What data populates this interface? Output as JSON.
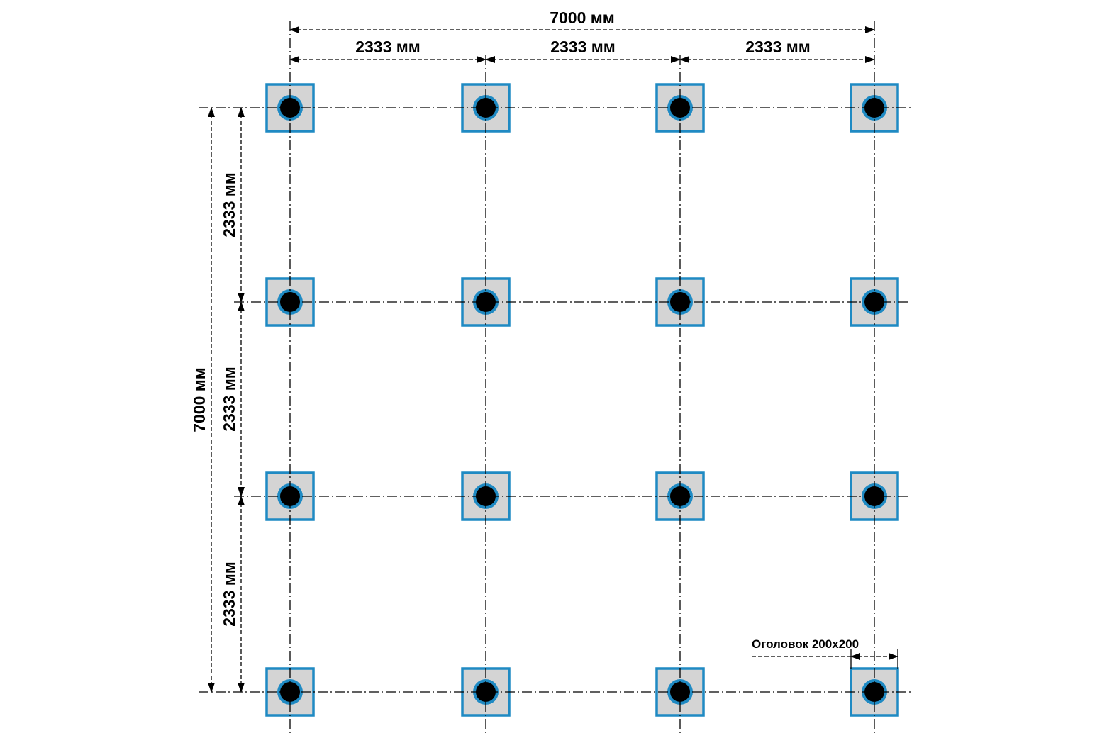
{
  "dimensions": {
    "total_width": "7000 мм",
    "total_height": "7000 мм",
    "spans_x": [
      "2333 мм",
      "2333 мм",
      "2333 мм"
    ],
    "spans_y": [
      "2333 мм",
      "2333 мм",
      "2333 мм"
    ]
  },
  "annotation": {
    "pile_cap": "Оголовок 200х200"
  },
  "grid": {
    "columns": 4,
    "rows": 4
  },
  "colors": {
    "cap_fill": "#d4d4d4",
    "cap_border": "#1f8ac3",
    "pile_ring": "#1f8ac3",
    "pile_core": "#000000",
    "lines": "#000000",
    "background": "#ffffff"
  }
}
